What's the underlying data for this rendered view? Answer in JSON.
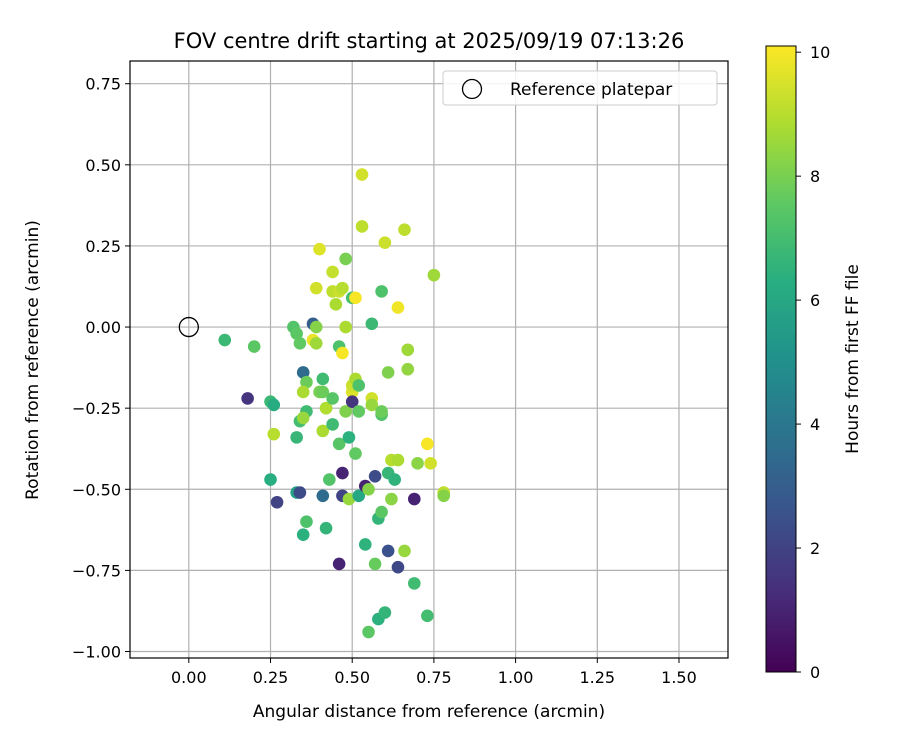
{
  "chart_data": {
    "type": "scatter",
    "title": "FOV centre drift starting at 2025/09/19 07:13:26",
    "xlabel": "Angular distance from reference (arcmin)",
    "ylabel": "Rotation from reference (arcmin)",
    "xlim": [
      -0.18,
      1.65
    ],
    "ylim": [
      -1.02,
      0.82
    ],
    "xticks": [
      0.0,
      0.25,
      0.5,
      0.75,
      1.0,
      1.25,
      1.5
    ],
    "xtick_labels": [
      "0.00",
      "0.25",
      "0.50",
      "0.75",
      "1.00",
      "1.25",
      "1.50"
    ],
    "yticks": [
      -1.0,
      -0.75,
      -0.5,
      -0.25,
      0.0,
      0.25,
      0.5,
      0.75
    ],
    "ytick_labels": [
      "−1.00",
      "−0.75",
      "−0.50",
      "−0.25",
      "0.00",
      "0.25",
      "0.50",
      "0.75"
    ],
    "grid": true,
    "legend": {
      "position": "upper-right",
      "entries": [
        "Reference platepar"
      ]
    },
    "colorbar": {
      "label": "Hours from first FF file",
      "range": [
        0,
        10.1
      ],
      "ticks": [
        0,
        2,
        4,
        6,
        8,
        10
      ],
      "tick_labels": [
        "0",
        "2",
        "4",
        "6",
        "8",
        "10"
      ],
      "colormap": "viridis"
    },
    "reference": {
      "x": 0.0,
      "y": 0.0,
      "label": "Reference platepar"
    },
    "points": [
      [
        0.11,
        -0.04,
        6.8
      ],
      [
        0.18,
        -0.22,
        1.5
      ],
      [
        0.2,
        -0.06,
        7.5
      ],
      [
        0.25,
        -0.23,
        6.8
      ],
      [
        0.26,
        -0.24,
        6.2
      ],
      [
        0.26,
        -0.33,
        9.0
      ],
      [
        0.25,
        -0.47,
        6.3
      ],
      [
        0.27,
        -0.54,
        2.0
      ],
      [
        0.32,
        0.0,
        7.3
      ],
      [
        0.33,
        -0.02,
        7.5
      ],
      [
        0.34,
        -0.05,
        7.6
      ],
      [
        0.33,
        -0.34,
        6.7
      ],
      [
        0.34,
        -0.29,
        7.0
      ],
      [
        0.33,
        -0.51,
        5.8
      ],
      [
        0.34,
        -0.51,
        2.3
      ],
      [
        0.35,
        -0.64,
        6.4
      ],
      [
        0.35,
        -0.14,
        3.5
      ],
      [
        0.36,
        -0.17,
        7.8
      ],
      [
        0.35,
        -0.2,
        8.8
      ],
      [
        0.36,
        -0.26,
        6.9
      ],
      [
        0.35,
        -0.28,
        8.5
      ],
      [
        0.36,
        -0.6,
        7.2
      ],
      [
        0.38,
        0.01,
        3.0
      ],
      [
        0.38,
        -0.04,
        9.8
      ],
      [
        0.39,
        0.12,
        9.4
      ],
      [
        0.4,
        0.24,
        9.6
      ],
      [
        0.39,
        0.0,
        8.2
      ],
      [
        0.39,
        -0.05,
        8.6
      ],
      [
        0.4,
        -0.2,
        8.0
      ],
      [
        0.41,
        -0.16,
        6.9
      ],
      [
        0.41,
        -0.2,
        7.8
      ],
      [
        0.42,
        -0.25,
        7.5
      ],
      [
        0.41,
        -0.32,
        8.8
      ],
      [
        0.42,
        -0.62,
        6.6
      ],
      [
        0.41,
        -0.52,
        3.5
      ],
      [
        0.43,
        -0.47,
        7.3
      ],
      [
        0.42,
        -0.25,
        8.9
      ],
      [
        0.44,
        0.17,
        9.2
      ],
      [
        0.44,
        0.11,
        9.1
      ],
      [
        0.44,
        -0.22,
        7.4
      ],
      [
        0.44,
        -0.3,
        6.9
      ],
      [
        0.45,
        0.07,
        8.8
      ],
      [
        0.46,
        0.11,
        9.3
      ],
      [
        0.46,
        -0.06,
        7.2
      ],
      [
        0.46,
        -0.36,
        7.4
      ],
      [
        0.47,
        0.12,
        9.0
      ],
      [
        0.47,
        -0.08,
        10.0
      ],
      [
        0.48,
        0.0,
        8.8
      ],
      [
        0.48,
        0.21,
        8.0
      ],
      [
        0.47,
        -0.45,
        1.0
      ],
      [
        0.47,
        -0.52,
        2.0
      ],
      [
        0.46,
        -0.73,
        1.0
      ],
      [
        0.48,
        -0.26,
        8.1
      ],
      [
        0.49,
        -0.53,
        8.5
      ],
      [
        0.49,
        -0.34,
        6.4
      ],
      [
        0.5,
        0.09,
        7.0
      ],
      [
        0.5,
        -0.2,
        9.6
      ],
      [
        0.5,
        -0.18,
        9.3
      ],
      [
        0.5,
        -0.23,
        1.5
      ],
      [
        0.51,
        0.09,
        10.0
      ],
      [
        0.51,
        -0.16,
        8.8
      ],
      [
        0.51,
        -0.39,
        7.6
      ],
      [
        0.52,
        -0.52,
        6.0
      ],
      [
        0.52,
        -0.18,
        7.2
      ],
      [
        0.52,
        -0.26,
        7.6
      ],
      [
        0.53,
        0.47,
        9.4
      ],
      [
        0.53,
        0.31,
        9.1
      ],
      [
        0.54,
        -0.49,
        1.0
      ],
      [
        0.54,
        -0.67,
        6.5
      ],
      [
        0.55,
        -0.5,
        8.2
      ],
      [
        0.55,
        -0.94,
        7.5
      ],
      [
        0.56,
        0.01,
        6.8
      ],
      [
        0.56,
        -0.22,
        9.4
      ],
      [
        0.56,
        -0.24,
        8.5
      ],
      [
        0.57,
        -0.46,
        2.3
      ],
      [
        0.57,
        -0.73,
        7.7
      ],
      [
        0.58,
        -0.59,
        6.6
      ],
      [
        0.58,
        -0.9,
        6.4
      ],
      [
        0.59,
        0.11,
        7.2
      ],
      [
        0.59,
        -0.27,
        7.3
      ],
      [
        0.59,
        -0.57,
        7.5
      ],
      [
        0.59,
        -0.26,
        7.8
      ],
      [
        0.6,
        0.26,
        9.3
      ],
      [
        0.6,
        -0.88,
        6.6
      ],
      [
        0.61,
        -0.14,
        8.1
      ],
      [
        0.61,
        -0.45,
        6.7
      ],
      [
        0.61,
        -0.69,
        2.5
      ],
      [
        0.62,
        -0.41,
        9.0
      ],
      [
        0.62,
        -0.53,
        8.3
      ],
      [
        0.63,
        -0.47,
        6.5
      ],
      [
        0.64,
        0.06,
        9.9
      ],
      [
        0.64,
        -0.41,
        8.8
      ],
      [
        0.64,
        -0.74,
        2.2
      ],
      [
        0.66,
        0.3,
        9.1
      ],
      [
        0.66,
        -0.69,
        8.5
      ],
      [
        0.67,
        -0.13,
        8.4
      ],
      [
        0.67,
        -0.07,
        8.6
      ],
      [
        0.69,
        -0.53,
        1.0
      ],
      [
        0.69,
        -0.79,
        6.9
      ],
      [
        0.7,
        -0.42,
        8.3
      ],
      [
        0.73,
        -0.36,
        10.0
      ],
      [
        0.73,
        -0.89,
        7.0
      ],
      [
        0.74,
        -0.42,
        9.4
      ],
      [
        0.75,
        0.16,
        8.6
      ],
      [
        0.78,
        -0.51,
        9.1
      ],
      [
        0.78,
        -0.52,
        8.2
      ]
    ]
  }
}
